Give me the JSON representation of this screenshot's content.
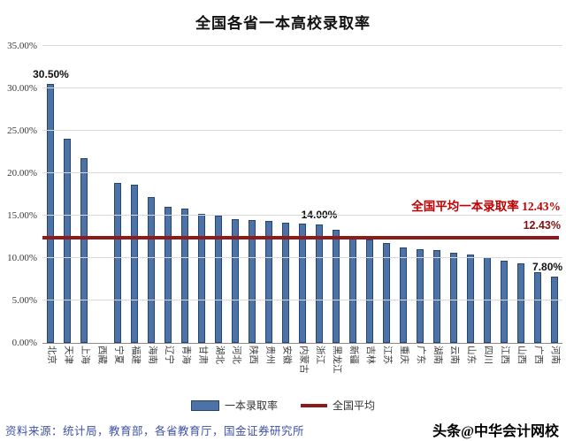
{
  "chart_data": {
    "type": "bar",
    "title": "全国各省一本高校录取率",
    "categories": [
      "北京",
      "天津",
      "上海",
      "西藏",
      "宁夏",
      "福建",
      "海南",
      "辽宁",
      "青海",
      "甘肃",
      "湖北",
      "河北",
      "陕西",
      "贵州",
      "安徽",
      "内蒙古",
      "浙江",
      "黑龙江",
      "新疆",
      "吉林",
      "江苏",
      "重庆",
      "广东",
      "湖南",
      "云南",
      "山东",
      "四川",
      "江西",
      "山西",
      "广西",
      "河南"
    ],
    "values": [
      30.5,
      24.1,
      21.8,
      null,
      18.9,
      18.6,
      17.2,
      16.0,
      15.8,
      15.2,
      15.0,
      14.6,
      14.5,
      14.4,
      14.2,
      14.1,
      14.0,
      13.3,
      12.6,
      12.2,
      11.8,
      11.3,
      11.0,
      10.9,
      10.6,
      10.4,
      10.1,
      9.7,
      9.4,
      8.3,
      7.8
    ],
    "point_labels": [
      "30.50%",
      null,
      null,
      null,
      null,
      null,
      null,
      null,
      null,
      null,
      null,
      null,
      null,
      null,
      null,
      null,
      "14.00%",
      null,
      null,
      null,
      null,
      null,
      null,
      null,
      null,
      null,
      null,
      null,
      null,
      null,
      "7.80%"
    ],
    "average_line": {
      "value": 12.43,
      "annotation": "全国平均一本录取率 12.43%",
      "end_label": "12.43%"
    },
    "y_ticks": [
      "0.00%",
      "5.00%",
      "10.00%",
      "15.00%",
      "20.00%",
      "25.00%",
      "30.00%",
      "35.00%"
    ],
    "ylim": [
      0,
      35
    ],
    "grid": true,
    "legend": [
      "一本录取率",
      "全国平均"
    ],
    "legend_position": "bottom",
    "colors": {
      "bar": "#4c72a8",
      "bar_border": "#24466e",
      "average_line": "#8e1a1a",
      "annotation": "#c00000",
      "end_label": "#7f1212",
      "grid": "#d9d9d9"
    }
  },
  "footer": {
    "source": "资料来源：统计局，教育部，各省教育厅，国金证券研究所",
    "source_color": "#3f51a3",
    "watermark": "头条@中华会计网校"
  }
}
